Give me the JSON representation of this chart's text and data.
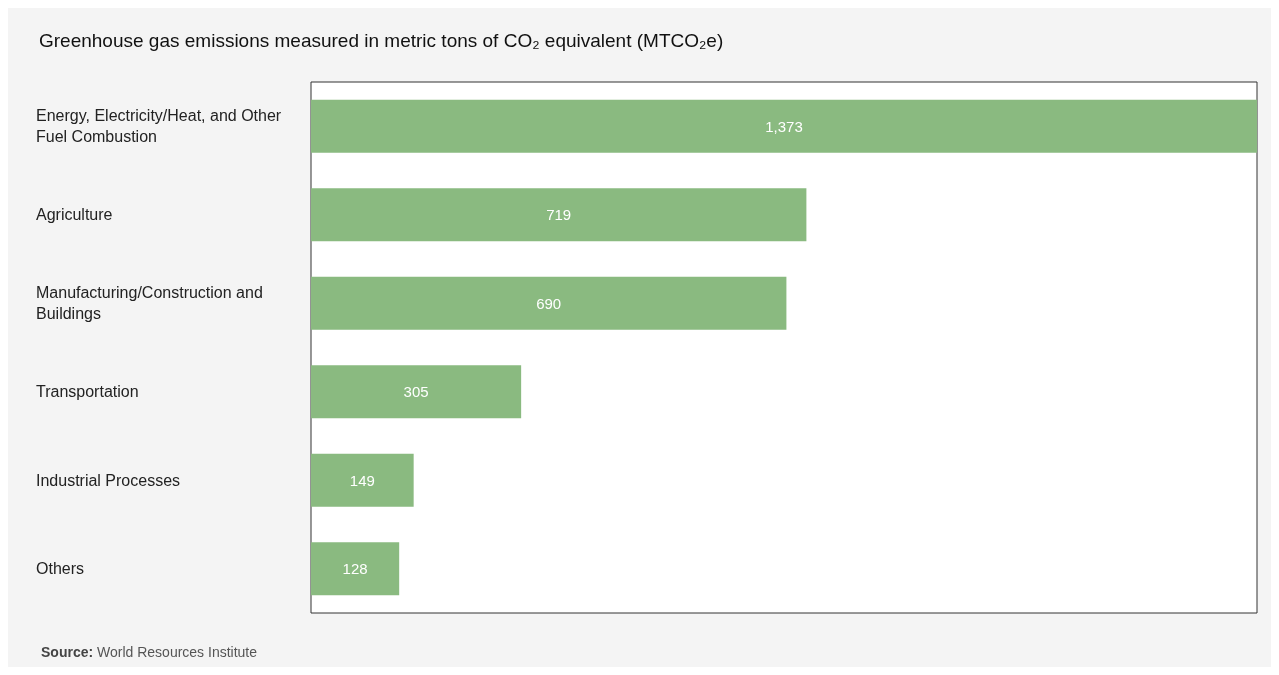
{
  "chart_data": {
    "type": "bar",
    "orientation": "horizontal",
    "title": "Greenhouse gas emissions measured in metric tons of CO₂ equivalent (MTCO₂e)",
    "categories": [
      "Energy, Electricity/Heat, and Other Fuel Combustion",
      "Agriculture",
      "Manufacturing/Construction and Buildings",
      "Transportation",
      "Industrial Processes",
      "Others"
    ],
    "values": [
      1373,
      719,
      690,
      305,
      149,
      128
    ],
    "value_labels": [
      "1,373",
      "719",
      "690",
      "305",
      "149",
      "128"
    ],
    "color": "#8aba80",
    "annotations": [
      "Source: World Resources Institute"
    ]
  }
}
